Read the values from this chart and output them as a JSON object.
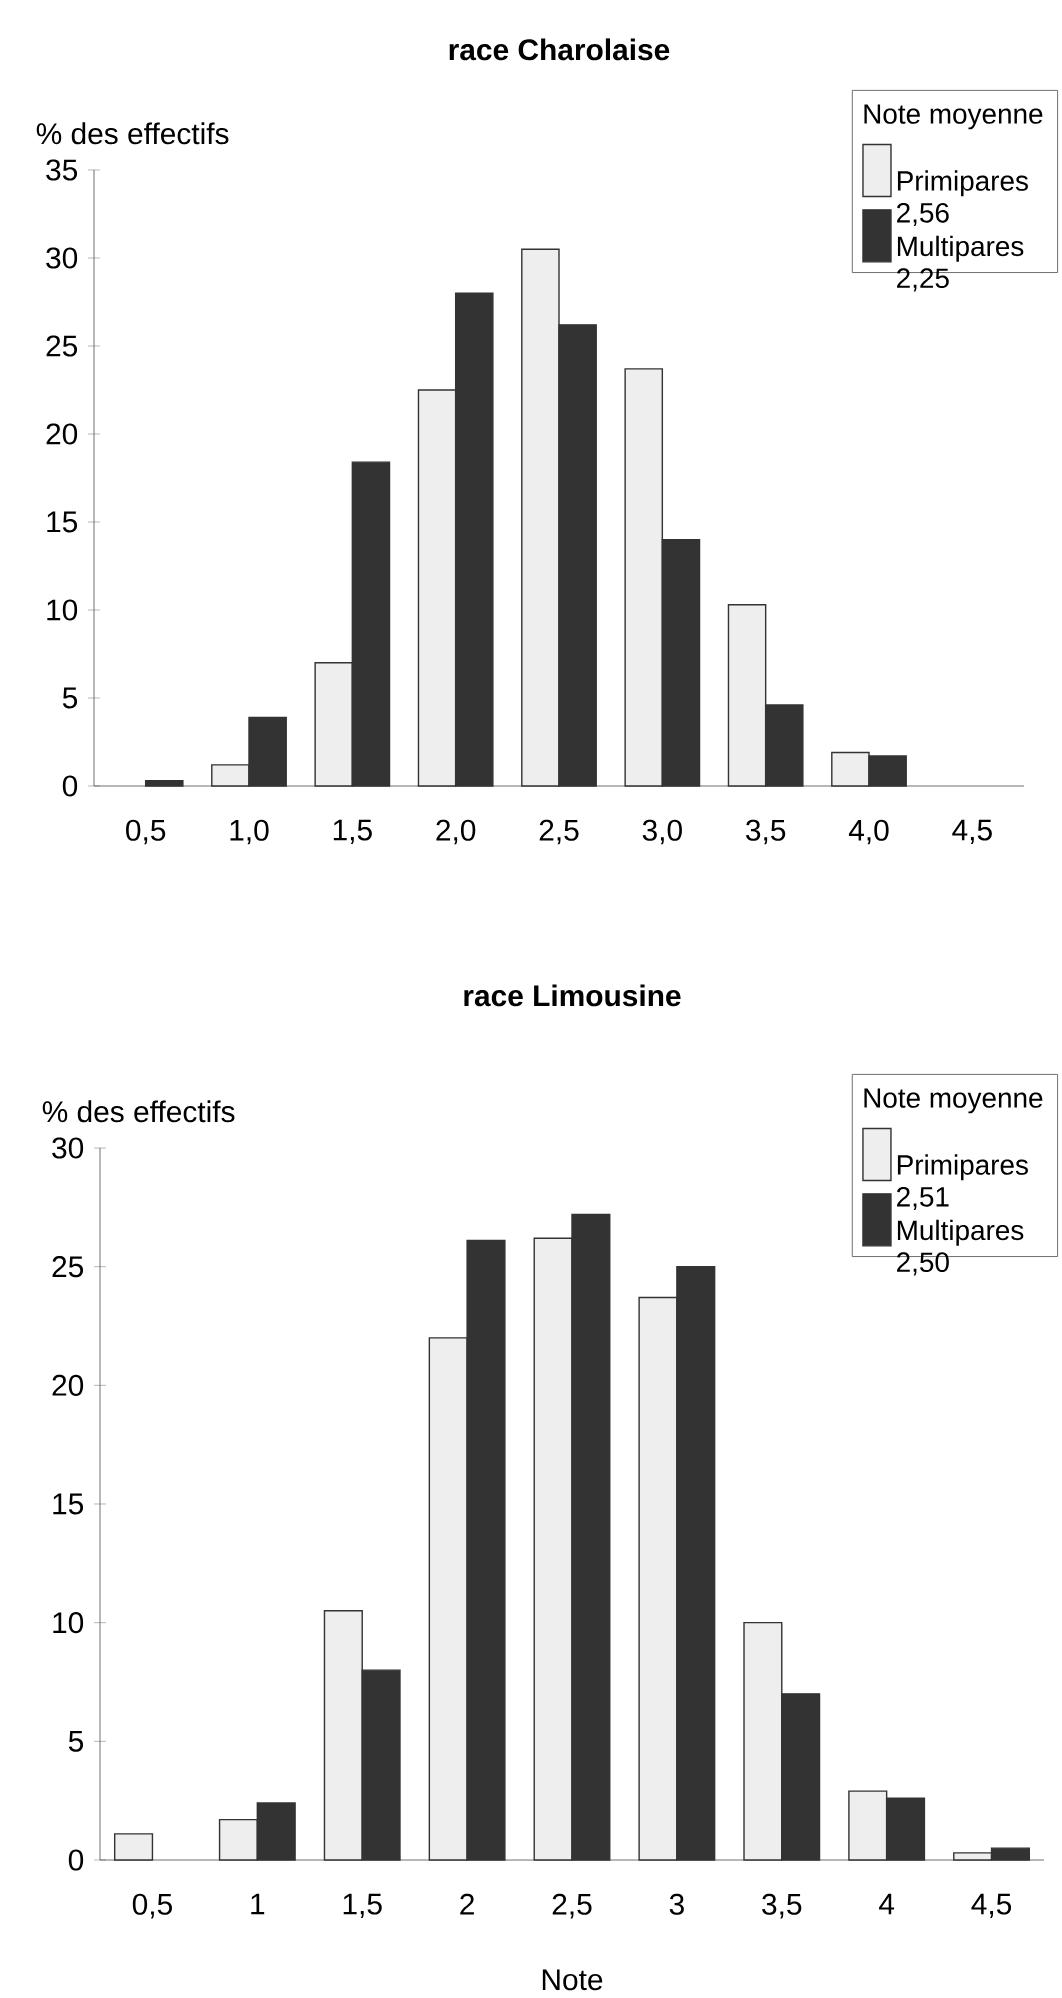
{
  "chart_data": [
    {
      "type": "bar",
      "title": "race Charolaise",
      "ylabel": "% des effectifs",
      "legend_title": "Note moyenne",
      "categories": [
        "0,5",
        "1,0",
        "1,5",
        "2,0",
        "2,5",
        "3,0",
        "3,5",
        "4,0",
        "4,5"
      ],
      "series": [
        {
          "name": "Primipares 2,56",
          "color": "#eeeeee",
          "values": [
            null,
            1.2,
            7.0,
            22.5,
            30.5,
            23.7,
            10.3,
            1.9,
            null
          ]
        },
        {
          "name": "Multipares 2,25",
          "color": "#333333",
          "values": [
            0.3,
            3.9,
            18.4,
            28.0,
            26.2,
            14.0,
            4.6,
            1.7,
            null
          ]
        }
      ],
      "ylim": [
        0,
        35
      ],
      "yticks": [
        0,
        5,
        10,
        15,
        20,
        25,
        30,
        35
      ],
      "legend": "top right"
    },
    {
      "type": "bar",
      "title": "race Limousine",
      "ylabel": "% des effectifs",
      "xlabel": "Note",
      "legend_title": "Note moyenne",
      "categories": [
        "0,5",
        "1",
        "1,5",
        "2",
        "2,5",
        "3",
        "3,5",
        "4",
        "4,5"
      ],
      "series": [
        {
          "name": "Primipares 2,51",
          "color": "#eeeeee",
          "values": [
            1.1,
            1.7,
            10.5,
            22.0,
            26.2,
            23.7,
            10.0,
            2.9,
            0.3
          ]
        },
        {
          "name": "Multipares 2,50",
          "color": "#333333",
          "values": [
            null,
            2.4,
            8.0,
            26.1,
            27.2,
            25.0,
            7.0,
            2.6,
            0.5
          ]
        }
      ],
      "ylim": [
        0,
        30
      ],
      "yticks": [
        0,
        5,
        10,
        15,
        20,
        25,
        30
      ],
      "legend": "top right"
    }
  ]
}
